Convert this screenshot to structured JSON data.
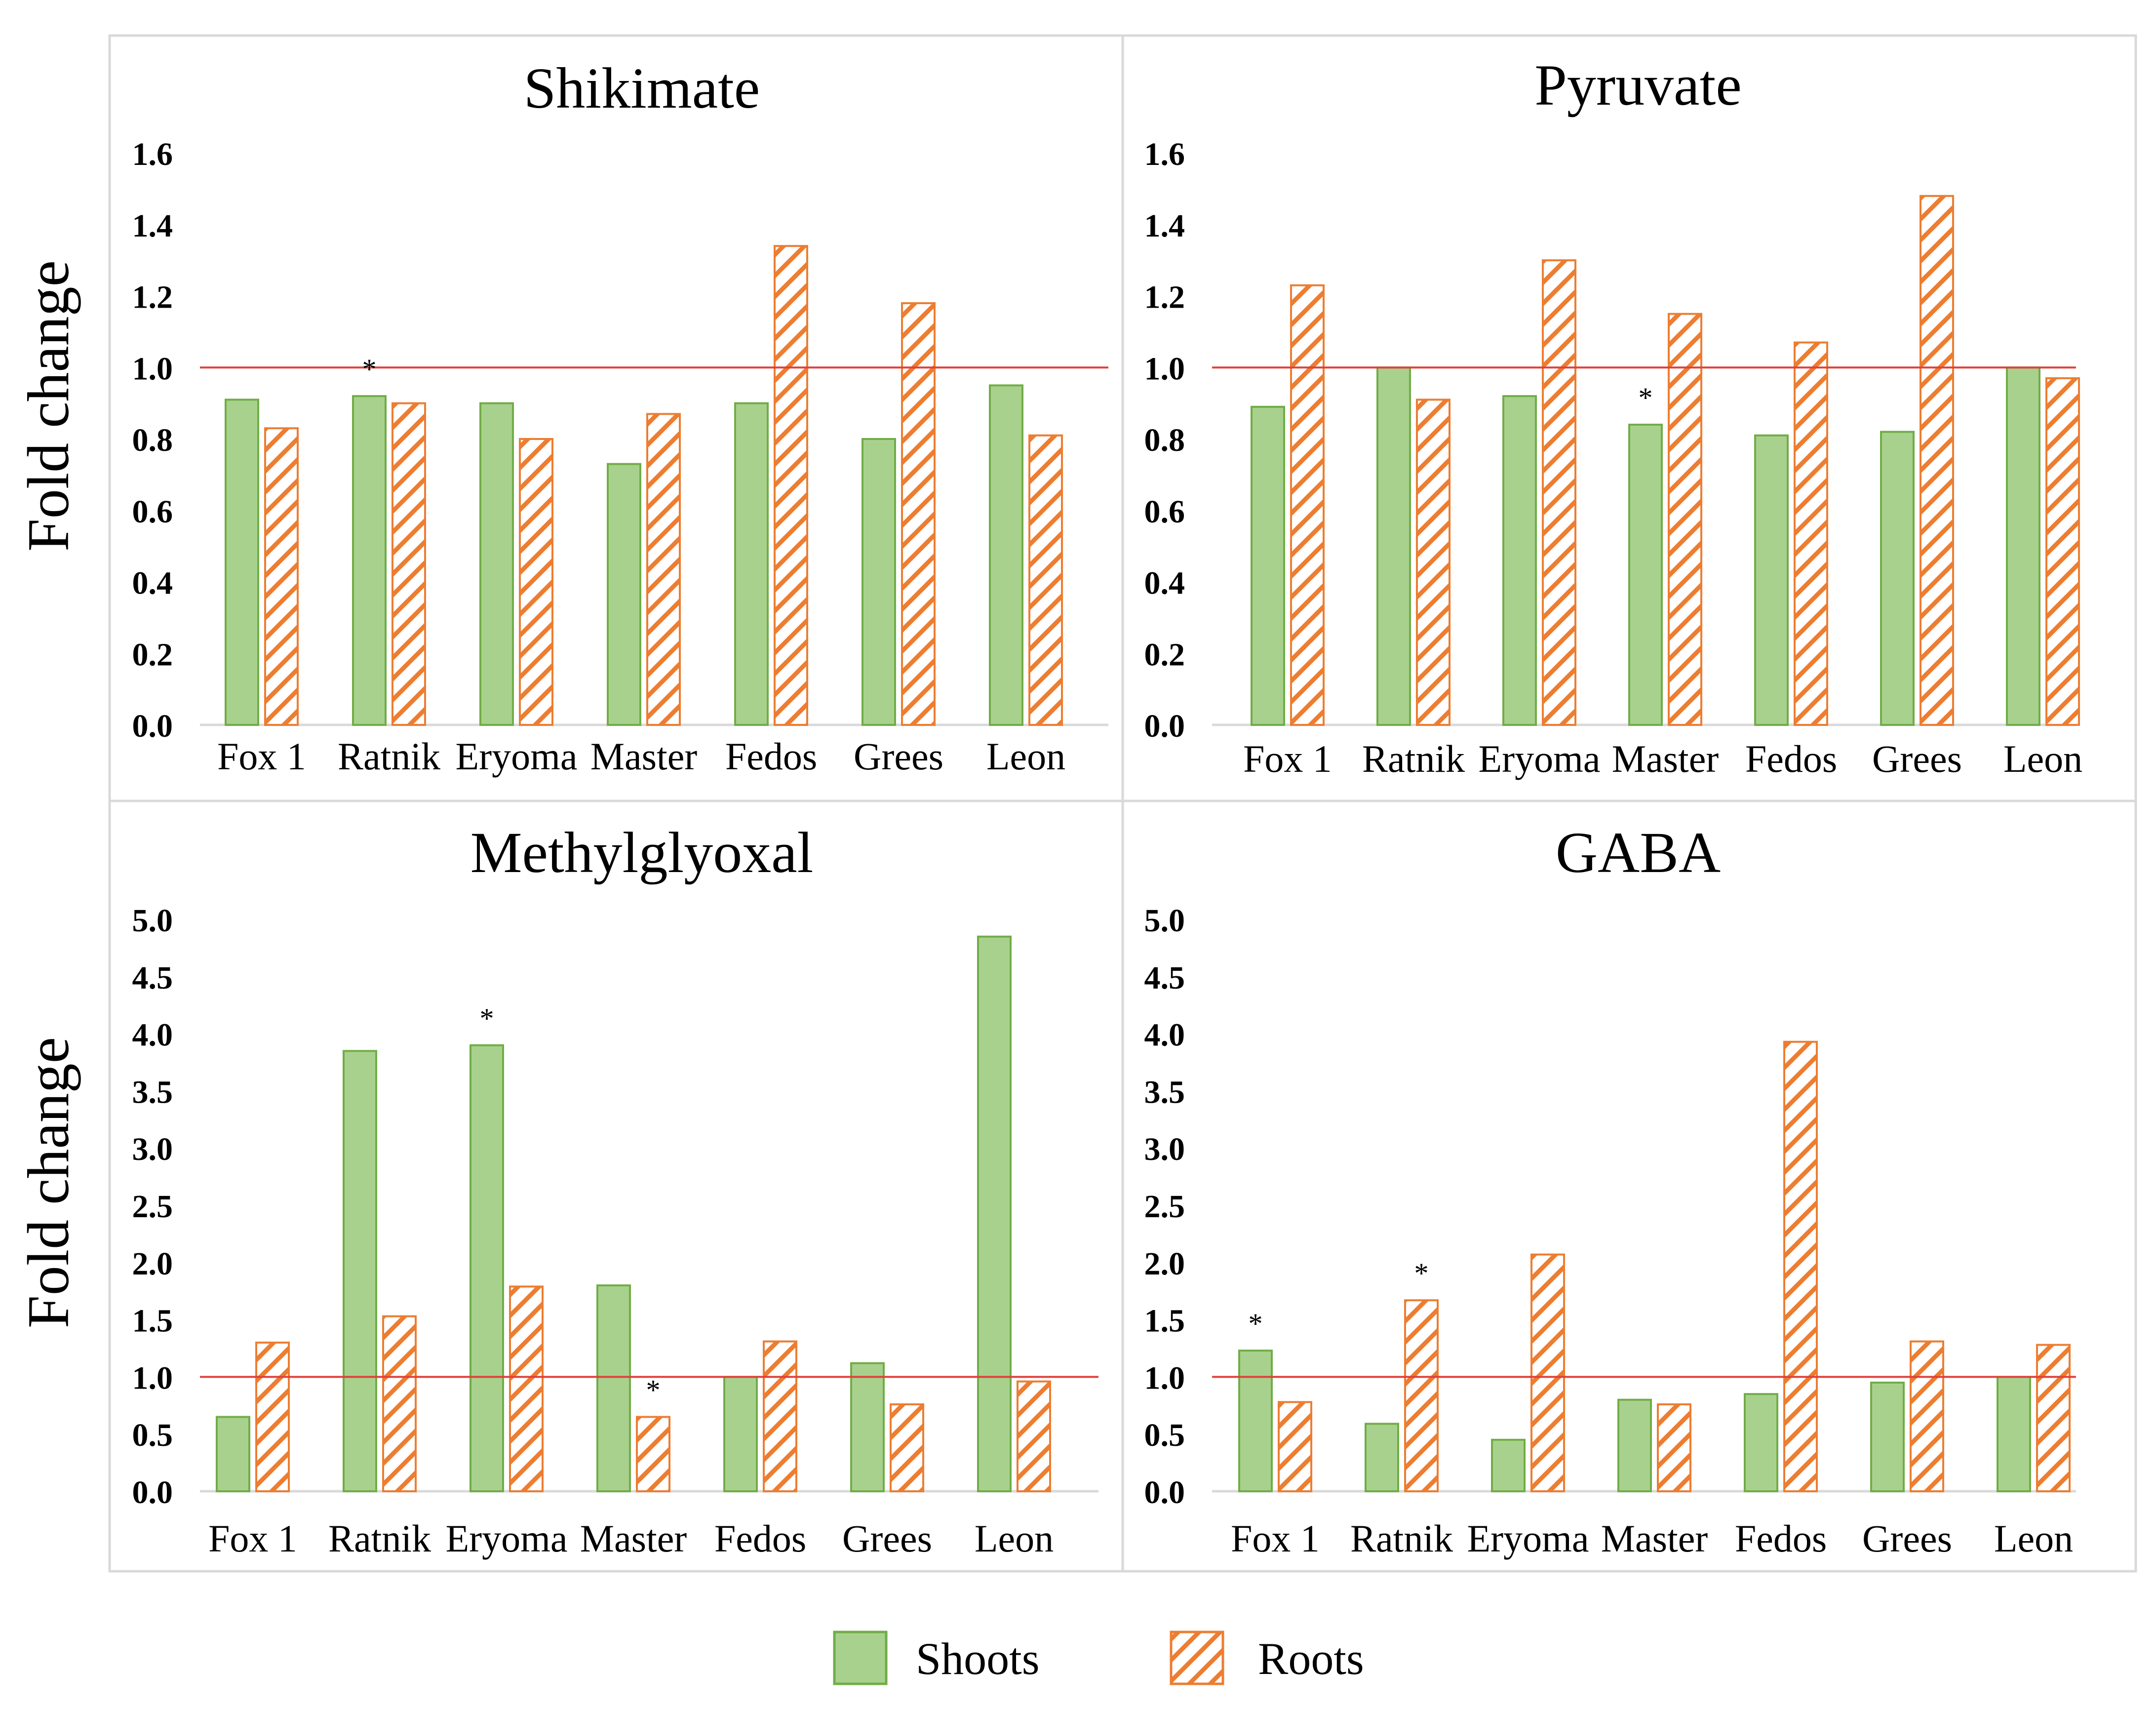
{
  "ylabel": "Fold change",
  "colors": {
    "shoots_fill": "#a9d18e",
    "shoots_stroke": "#70ad47",
    "roots_stroke": "#ed7d31",
    "reference_line": "#e0413a"
  },
  "legend": {
    "position": "bottom-center",
    "items": [
      {
        "label": "Shoots",
        "pattern": "solid"
      },
      {
        "label": "Roots",
        "pattern": "diagonal-hatch"
      }
    ]
  },
  "chart_data": [
    {
      "type": "bar",
      "title": "Shikimate",
      "categories": [
        "Fox 1",
        "Ratnik",
        "Eryoma",
        "Master",
        "Fedos",
        "Grees",
        "Leon"
      ],
      "series": [
        {
          "name": "Shoots",
          "values": [
            0.91,
            0.92,
            0.9,
            0.73,
            0.9,
            0.8,
            0.95
          ]
        },
        {
          "name": "Roots",
          "values": [
            0.83,
            0.9,
            0.8,
            0.87,
            1.34,
            1.18,
            0.81
          ]
        }
      ],
      "yticks": [
        "0.0",
        "0.2",
        "0.4",
        "0.6",
        "0.8",
        "1.0",
        "1.2",
        "1.4",
        "1.6"
      ],
      "ylim": [
        0,
        1.6
      ],
      "reference_line": 1.0,
      "significance": [
        {
          "category": "Ratnik",
          "series": "Shoots",
          "label": "*"
        }
      ],
      "grid": false
    },
    {
      "type": "bar",
      "title": "Pyruvate",
      "categories": [
        "Fox 1",
        "Ratnik",
        "Eryoma",
        "Master",
        "Fedos",
        "Grees",
        "Leon"
      ],
      "series": [
        {
          "name": "Shoots",
          "values": [
            0.89,
            1.0,
            0.92,
            0.84,
            0.81,
            0.82,
            1.0
          ]
        },
        {
          "name": "Roots",
          "values": [
            1.23,
            0.91,
            1.3,
            1.15,
            1.07,
            1.48,
            0.97
          ]
        }
      ],
      "yticks": [
        "0.0",
        "0.2",
        "0.4",
        "0.6",
        "0.8",
        "1.0",
        "1.2",
        "1.4",
        "1.6"
      ],
      "ylim": [
        0,
        1.6
      ],
      "reference_line": 1.0,
      "significance": [
        {
          "category": "Master",
          "series": "Shoots",
          "label": "*"
        }
      ],
      "grid": false
    },
    {
      "type": "bar",
      "title": "Methylglyoxal",
      "categories": [
        "Fox 1",
        "Ratnik",
        "Eryoma",
        "Master",
        "Fedos",
        "Grees",
        "Leon"
      ],
      "series": [
        {
          "name": "Shoots",
          "values": [
            0.65,
            3.85,
            3.9,
            1.8,
            1.0,
            1.12,
            4.85
          ]
        },
        {
          "name": "Roots",
          "values": [
            1.3,
            1.53,
            1.79,
            0.65,
            1.31,
            0.76,
            0.96
          ]
        }
      ],
      "yticks": [
        "0.0",
        "0.5",
        "1.0",
        "1.5",
        "2.0",
        "2.5",
        "3.0",
        "3.5",
        "4.0",
        "4.5",
        "5.0"
      ],
      "ylim": [
        0,
        5.0
      ],
      "reference_line": 1.0,
      "significance": [
        {
          "category": "Eryoma",
          "series": "Shoots",
          "label": "*"
        },
        {
          "category": "Master",
          "series": "Roots",
          "label": "*"
        }
      ],
      "grid": false
    },
    {
      "type": "bar",
      "title": "GABA",
      "categories": [
        "Fox 1",
        "Ratnik",
        "Eryoma",
        "Master",
        "Fedos",
        "Grees",
        "Leon"
      ],
      "series": [
        {
          "name": "Shoots",
          "values": [
            1.23,
            0.59,
            0.45,
            0.8,
            0.85,
            0.95,
            1.0
          ]
        },
        {
          "name": "Roots",
          "values": [
            0.78,
            1.67,
            2.07,
            0.76,
            3.93,
            1.31,
            1.28
          ]
        }
      ],
      "yticks": [
        "0.0",
        "0.5",
        "1.0",
        "1.5",
        "2.0",
        "2.5",
        "3.0",
        "3.5",
        "4.0",
        "4.5",
        "5.0"
      ],
      "ylim": [
        0,
        5.0
      ],
      "reference_line": 1.0,
      "significance": [
        {
          "category": "Fox 1",
          "series": "Shoots",
          "label": "*"
        },
        {
          "category": "Ratnik",
          "series": "Roots",
          "label": "*"
        }
      ],
      "grid": false
    }
  ]
}
